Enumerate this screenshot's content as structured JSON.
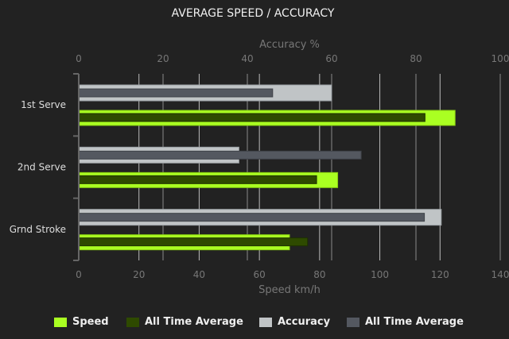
{
  "chart_data": {
    "type": "bar",
    "orientation": "horizontal",
    "title": "AVERAGE SPEED / ACCURACY",
    "categories": [
      "1st Serve",
      "2nd Serve",
      "Grnd Stroke"
    ],
    "top_axis": {
      "label": "Accuracy %",
      "range": [
        0,
        100
      ],
      "ticks": [
        "0",
        "20",
        "40",
        "60",
        "80",
        "100"
      ]
    },
    "bottom_axis": {
      "label": "Speed km/h",
      "range": [
        0,
        140
      ],
      "ticks": [
        "0",
        "20",
        "40",
        "60",
        "80",
        "100",
        "120",
        "140"
      ]
    },
    "grid": true,
    "legend_position": "bottom",
    "series": [
      {
        "name": "Speed",
        "axis": "bottom",
        "color": "#aaff22",
        "values": [
          125,
          86,
          70
        ]
      },
      {
        "name": "All Time Average",
        "axis": "bottom",
        "color": "#2e4a00",
        "values": [
          115,
          79,
          76
        ]
      },
      {
        "name": "Accuracy",
        "axis": "top",
        "color": "#c0c4c6",
        "values": [
          60,
          38,
          86
        ]
      },
      {
        "name": "All Time Average",
        "axis": "top",
        "color": "#545860",
        "values": [
          46,
          67,
          82
        ]
      }
    ]
  }
}
